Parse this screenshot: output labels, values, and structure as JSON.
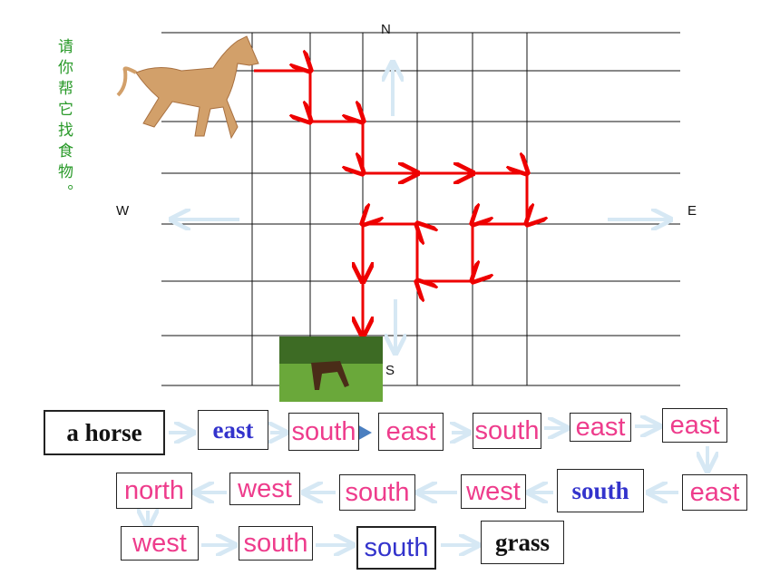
{
  "instruction": "请你帮它找食物。",
  "compass": {
    "north": "N",
    "south": "S",
    "west": "W",
    "east": "E"
  },
  "steps": [
    "a horse",
    "east",
    "south",
    "east",
    "south",
    "east",
    "east",
    "east",
    "south",
    "west",
    "south",
    "west",
    "north",
    "west",
    "south",
    "south",
    "grass"
  ]
}
